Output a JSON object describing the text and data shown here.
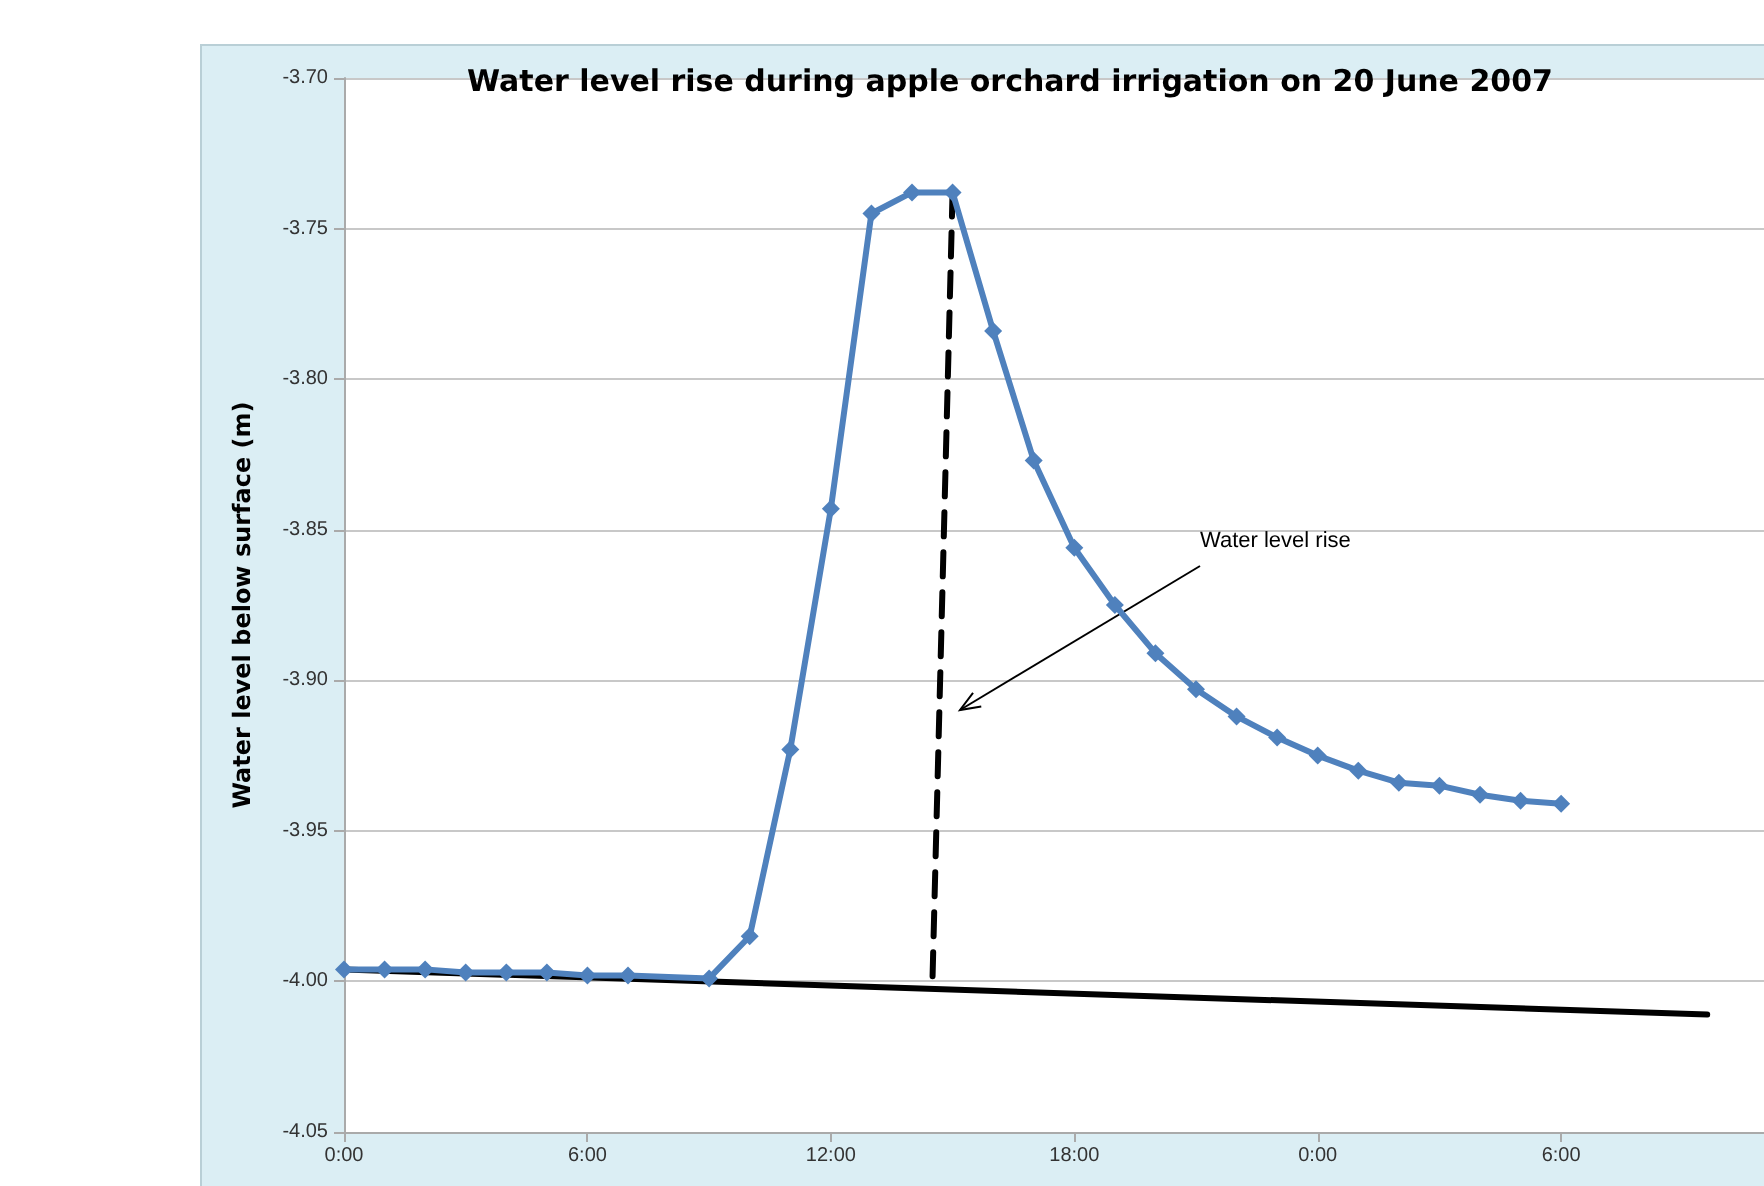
{
  "chart_data": {
    "type": "line",
    "title": "Water level rise during apple orchard irrigation on 20 June 2007",
    "ylabel": "Water level below surface (m)",
    "series": [
      {
        "color": "#4f81bd",
        "marker": "diamond",
        "x": [
          "2007-06-20T00:00",
          "2007-06-20T01:00",
          "2007-06-20T02:00",
          "2007-06-20T03:00",
          "2007-06-20T04:00",
          "2007-06-20T05:00",
          "2007-06-20T06:00",
          "2007-06-20T07:00",
          "2007-06-20T09:00",
          "2007-06-20T10:00",
          "2007-06-20T11:00",
          "2007-06-20T12:00",
          "2007-06-20T13:00",
          "2007-06-20T14:00",
          "2007-06-20T15:00",
          "2007-06-20T16:00",
          "2007-06-20T17:00",
          "2007-06-20T18:00",
          "2007-06-20T19:00",
          "2007-06-20T20:00",
          "2007-06-20T21:00",
          "2007-06-20T22:00",
          "2007-06-20T23:00",
          "2007-06-21T00:00",
          "2007-06-21T01:00",
          "2007-06-21T02:00",
          "2007-06-21T03:00",
          "2007-06-21T04:00",
          "2007-06-21T05:00",
          "2007-06-21T06:00"
        ],
        "values": [
          -3.996,
          -3.996,
          -3.996,
          -3.997,
          -3.997,
          -3.997,
          -3.998,
          -3.998,
          -3.999,
          -3.985,
          -3.923,
          -3.843,
          -3.745,
          -3.738,
          -3.738,
          -3.784,
          -3.827,
          -3.856,
          -3.875,
          -3.891,
          -3.903,
          -3.912,
          -3.919,
          -3.925,
          -3.93,
          -3.934,
          -3.935,
          -3.938,
          -3.94,
          -3.941
        ]
      },
      {
        "color": "#000000",
        "marker": "none",
        "line_style": "solid",
        "x": [
          "2007-06-20T00:00",
          "2007-06-21T09:36"
        ],
        "values": [
          -3.996,
          -4.011
        ]
      },
      {
        "color": "#000000",
        "marker": "none",
        "line_style": "dashed",
        "x": [
          "2007-06-20T15:00",
          "2007-06-20T14:30"
        ],
        "values": [
          -3.738,
          -4.002
        ]
      }
    ],
    "annotations": [
      "Water level rise"
    ],
    "xlim": [
      "2007-06-20T00:00",
      "2007-06-21T11:00"
    ],
    "xticks": [
      {
        "value": "2007-06-20T00:00",
        "label": "0:00"
      },
      {
        "value": "2007-06-20T06:00",
        "label": "6:00"
      },
      {
        "value": "2007-06-20T12:00",
        "label": "12:00"
      },
      {
        "value": "2007-06-20T18:00",
        "label": "18:00"
      },
      {
        "value": "2007-06-21T00:00",
        "label": "0:00"
      },
      {
        "value": "2007-06-21T06:00",
        "label": "6:00"
      }
    ],
    "ylim": [
      -4.05,
      -3.7
    ],
    "yticks": [
      {
        "value": -4.05,
        "label": "-4.05"
      },
      {
        "value": -4.0,
        "label": "-4.00"
      },
      {
        "value": -3.95,
        "label": "-3.95"
      },
      {
        "value": -3.9,
        "label": "-3.90"
      },
      {
        "value": -3.85,
        "label": "-3.85"
      },
      {
        "value": -3.8,
        "label": "-3.80"
      },
      {
        "value": -3.75,
        "label": "-3.75"
      },
      {
        "value": -3.7,
        "label": "-3.70"
      }
    ],
    "grid": "y"
  }
}
